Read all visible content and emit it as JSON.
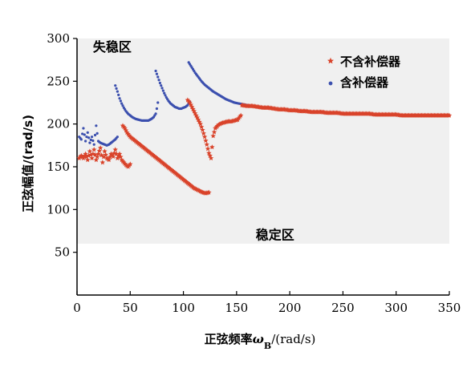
{
  "chart_data": {
    "type": "scatter",
    "xlabel_main": "正弦频率",
    "xlabel_symbol": "ω",
    "xlabel_sub": "B",
    "xlabel_unit": "/(rad/s)",
    "ylabel": "正弦幅值/(rad/s)",
    "xlim": [
      0,
      350
    ],
    "ylim": [
      0,
      300
    ],
    "xticks": [
      0,
      50,
      100,
      150,
      200,
      250,
      300,
      350
    ],
    "yticks": [
      50,
      100,
      150,
      200,
      250,
      300
    ],
    "annotations": [
      {
        "text": "失稳区",
        "x": 15,
        "y": 285
      },
      {
        "text": "稳定区",
        "x": 168,
        "y": 65
      }
    ],
    "legend_position": "top-right",
    "series": [
      {
        "name": "不含补偿器",
        "color": "#d9432a",
        "marker": "star",
        "segments": [
          [
            [
              2,
              160
            ],
            [
              4,
              163
            ],
            [
              6,
              160
            ],
            [
              8,
              165
            ],
            [
              10,
              158
            ],
            [
              12,
              168
            ],
            [
              14,
              160
            ],
            [
              16,
              170
            ],
            [
              18,
              158
            ],
            [
              20,
              165
            ],
            [
              22,
              172
            ],
            [
              24,
              155
            ],
            [
              26,
              168
            ],
            [
              28,
              160
            ],
            [
              30,
              158
            ],
            [
              32,
              165
            ],
            [
              34,
              162
            ],
            [
              36,
              170
            ],
            [
              38,
              160
            ],
            [
              40,
              165
            ],
            [
              42,
              158
            ],
            [
              44,
              155
            ],
            [
              46,
              152
            ],
            [
              48,
              150
            ],
            [
              50,
              153
            ]
          ],
          [
            [
              43,
              198
            ],
            [
              45,
              195
            ],
            [
              47,
              190
            ],
            [
              50,
              185
            ],
            [
              55,
              180
            ],
            [
              60,
              175
            ],
            [
              65,
              170
            ],
            [
              70,
              165
            ],
            [
              75,
              160
            ],
            [
              80,
              155
            ],
            [
              85,
              150
            ],
            [
              90,
              145
            ],
            [
              95,
              140
            ],
            [
              100,
              135
            ],
            [
              105,
              130
            ],
            [
              110,
              125
            ],
            [
              115,
              122
            ],
            [
              118,
              120
            ],
            [
              121,
              119
            ],
            [
              124,
              120
            ]
          ],
          [
            [
              104,
              228
            ],
            [
              106,
              225
            ],
            [
              108,
              220
            ],
            [
              110,
              215
            ],
            [
              112,
              210
            ],
            [
              114,
              205
            ],
            [
              116,
              200
            ],
            [
              118,
              193
            ],
            [
              120,
              185
            ],
            [
              122,
              176
            ],
            [
              124,
              166
            ],
            [
              126,
              160
            ],
            [
              128,
              186
            ],
            [
              130,
              195
            ],
            [
              133,
              199
            ],
            [
              136,
              201
            ],
            [
              139,
              202
            ],
            [
              142,
              203
            ],
            [
              145,
              203
            ],
            [
              148,
              204
            ],
            [
              151,
              205
            ],
            [
              154,
              210
            ]
          ],
          [
            [
              155,
              222
            ],
            [
              160,
              221
            ],
            [
              165,
              221
            ],
            [
              170,
              220
            ],
            [
              175,
              219
            ],
            [
              180,
              219
            ],
            [
              185,
              218
            ],
            [
              190,
              217
            ],
            [
              195,
              217
            ],
            [
              200,
              216
            ],
            [
              205,
              216
            ],
            [
              210,
              215
            ],
            [
              215,
              215
            ],
            [
              220,
              214
            ],
            [
              225,
              214
            ],
            [
              230,
              214
            ],
            [
              235,
              213
            ],
            [
              240,
              213
            ],
            [
              245,
              213
            ],
            [
              250,
              212
            ],
            [
              255,
              212
            ],
            [
              260,
              212
            ],
            [
              265,
              212
            ],
            [
              270,
              212
            ],
            [
              275,
              212
            ],
            [
              280,
              211
            ],
            [
              285,
              211
            ],
            [
              290,
              211
            ],
            [
              295,
              211
            ],
            [
              300,
              211
            ],
            [
              305,
              210
            ],
            [
              310,
              210
            ],
            [
              315,
              210
            ],
            [
              320,
              210
            ],
            [
              325,
              210
            ],
            [
              330,
              210
            ],
            [
              335,
              210
            ],
            [
              340,
              210
            ],
            [
              345,
              210
            ],
            [
              350,
              210
            ]
          ]
        ]
      },
      {
        "name": "含补偿器",
        "color": "#3b4fae",
        "marker": "dot",
        "segments": [
          [
            [
              2,
              185
            ],
            [
              4,
              182
            ],
            [
              6,
              195
            ],
            [
              8,
              180
            ],
            [
              10,
              190
            ],
            [
              12,
              178
            ],
            [
              14,
              185
            ],
            [
              16,
              176
            ],
            [
              18,
              198
            ],
            [
              20,
              180
            ],
            [
              22,
              178
            ],
            [
              24,
              177
            ],
            [
              26,
              176
            ],
            [
              28,
              175
            ],
            [
              30,
              176
            ],
            [
              32,
              178
            ],
            [
              34,
              180
            ],
            [
              36,
              182
            ],
            [
              38,
              185
            ]
          ],
          [
            [
              36,
              245
            ],
            [
              38,
              238
            ],
            [
              40,
              230
            ],
            [
              42,
              224
            ],
            [
              44,
              219
            ],
            [
              46,
              215
            ],
            [
              48,
              212
            ],
            [
              50,
              210
            ],
            [
              52,
              208
            ],
            [
              55,
              206
            ],
            [
              58,
              205
            ],
            [
              61,
              204
            ],
            [
              64,
              204
            ],
            [
              67,
              204
            ],
            [
              70,
              206
            ],
            [
              72,
              208
            ],
            [
              74,
              212
            ],
            [
              75,
              218
            ],
            [
              76,
              225
            ]
          ],
          [
            [
              74,
              262
            ],
            [
              76,
              255
            ],
            [
              78,
              248
            ],
            [
              80,
              242
            ],
            [
              82,
              236
            ],
            [
              84,
              231
            ],
            [
              86,
              227
            ],
            [
              88,
              224
            ],
            [
              90,
              222
            ],
            [
              92,
              220
            ],
            [
              94,
              219
            ],
            [
              96,
              218
            ],
            [
              98,
              218
            ],
            [
              100,
              219
            ],
            [
              102,
              220
            ],
            [
              104,
              222
            ],
            [
              106,
              226
            ]
          ],
          [
            [
              105,
              272
            ],
            [
              108,
              266
            ],
            [
              111,
              260
            ],
            [
              114,
              255
            ],
            [
              117,
              250
            ],
            [
              120,
              246
            ],
            [
              124,
              242
            ],
            [
              128,
              238
            ],
            [
              132,
              235
            ],
            [
              136,
              232
            ],
            [
              140,
              229
            ],
            [
              144,
              227
            ],
            [
              148,
              225
            ],
            [
              152,
              224
            ],
            [
              156,
              223
            ],
            [
              160,
              222
            ],
            [
              165,
              221
            ],
            [
              170,
              220
            ],
            [
              175,
              219
            ],
            [
              180,
              219
            ],
            [
              185,
              218
            ],
            [
              190,
              217
            ],
            [
              195,
              217
            ],
            [
              200,
              216
            ],
            [
              205,
              216
            ],
            [
              210,
              215
            ],
            [
              215,
              215
            ],
            [
              220,
              214
            ],
            [
              225,
              214
            ],
            [
              230,
              214
            ],
            [
              235,
              213
            ],
            [
              240,
              213
            ],
            [
              245,
              213
            ],
            [
              250,
              212
            ],
            [
              255,
              212
            ],
            [
              260,
              212
            ],
            [
              265,
              212
            ],
            [
              270,
              212
            ],
            [
              275,
              212
            ],
            [
              280,
              211
            ],
            [
              285,
              211
            ],
            [
              290,
              211
            ],
            [
              295,
              211
            ],
            [
              300,
              211
            ],
            [
              305,
              210
            ],
            [
              310,
              210
            ],
            [
              315,
              210
            ],
            [
              320,
              210
            ],
            [
              325,
              210
            ],
            [
              330,
              210
            ],
            [
              335,
              210
            ],
            [
              340,
              210
            ],
            [
              345,
              210
            ],
            [
              350,
              210
            ]
          ]
        ]
      }
    ]
  }
}
